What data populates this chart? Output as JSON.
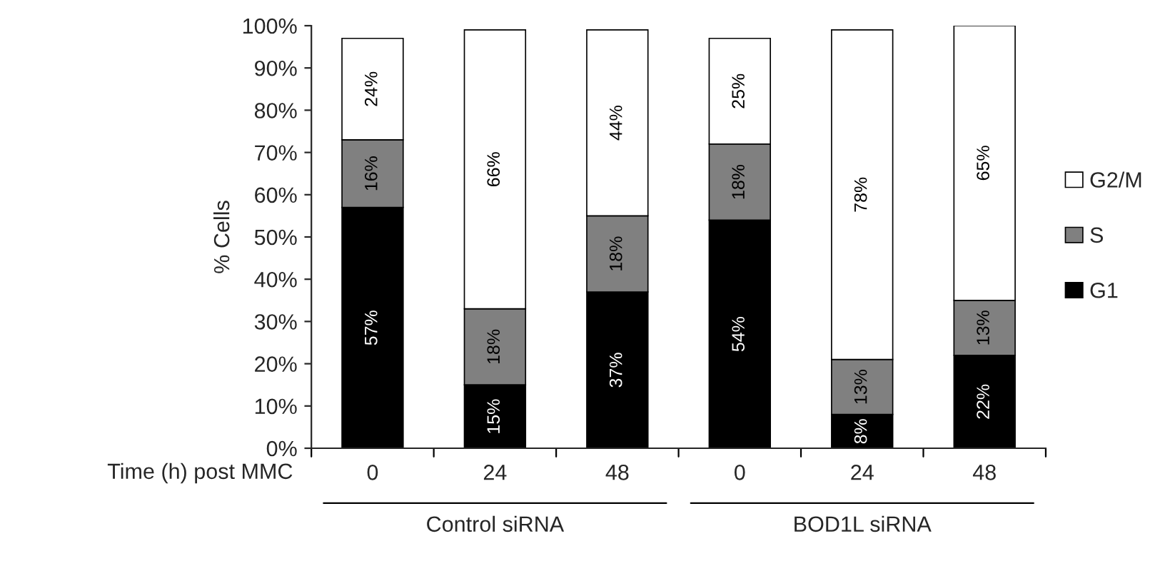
{
  "chart_data": {
    "type": "bar",
    "stacked": true,
    "ylabel": "% Cells",
    "xlabel": "Time (h) post MMC",
    "categories": [
      "0",
      "24",
      "48",
      "0",
      "24",
      "48"
    ],
    "series": [
      {
        "name": "G1",
        "color": "#000000",
        "values": [
          57,
          15,
          37,
          54,
          8,
          22
        ],
        "value_labels": [
          "57%",
          "15%",
          "37%",
          "54%",
          "8%",
          "22%"
        ]
      },
      {
        "name": "S",
        "color": "#808080",
        "values": [
          16,
          18,
          18,
          18,
          13,
          13
        ],
        "value_labels": [
          "16%",
          "18%",
          "18%",
          "18%",
          "13%",
          "13%"
        ]
      },
      {
        "name": "G2/M",
        "color": "#ffffff",
        "values": [
          24,
          66,
          44,
          25,
          78,
          65
        ],
        "value_labels": [
          "24%",
          "66%",
          "44%",
          "25%",
          "78%",
          "65%"
        ]
      }
    ],
    "annotations": [
      "Control siRNA",
      "BOD1L siRNA"
    ],
    "ylim": [
      0,
      100
    ],
    "yticks": [
      {
        "value": 0,
        "label": "0%"
      },
      {
        "value": 10,
        "label": "10%"
      },
      {
        "value": 20,
        "label": "20%"
      },
      {
        "value": 30,
        "label": "30%"
      },
      {
        "value": 40,
        "label": "40%"
      },
      {
        "value": 50,
        "label": "50%"
      },
      {
        "value": 60,
        "label": "60%"
      },
      {
        "value": 70,
        "label": "70%"
      },
      {
        "value": 80,
        "label": "80%"
      },
      {
        "value": 90,
        "label": "90%"
      },
      {
        "value": 100,
        "label": "100%"
      }
    ],
    "grid": false,
    "legend": "right"
  }
}
